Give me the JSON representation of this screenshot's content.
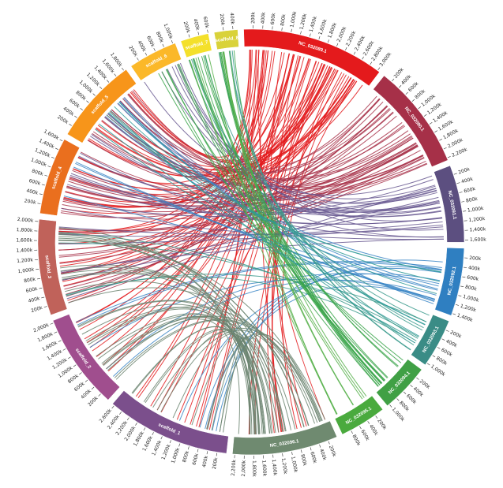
{
  "segments": [
    {
      "name": "NC_032089.1",
      "size": 3050000,
      "color": "#e41a1c",
      "ticks": [
        "200k",
        "400k",
        "600k",
        "800k",
        "1,000k",
        "1,200k",
        "1,400k",
        "1,600k",
        "1,800k",
        "2,000k",
        "2,200k",
        "2,400k",
        "2,600k",
        "2,800k",
        "3,000k"
      ]
    },
    {
      "name": "NC_032090.1",
      "size": 2250000,
      "color": "#a63048",
      "ticks": [
        "200k",
        "400k",
        "600k",
        "800k",
        "1,000k",
        "1,200k",
        "1,400k",
        "1,600k",
        "1,800k",
        "2,000k",
        "2,200k"
      ]
    },
    {
      "name": "NC_032091.1",
      "size": 1650000,
      "color": "#5c4f80",
      "ticks": [
        "200k",
        "400k",
        "600k",
        "800k",
        "1,000k",
        "1,200k",
        "1,400k",
        "1,600k"
      ]
    },
    {
      "name": "NC_032092.1",
      "size": 1450000,
      "color": "#2f7fc1",
      "ticks": [
        "200k",
        "400k",
        "600k",
        "800k",
        "1,000k",
        "1,200k",
        "1,400k"
      ]
    },
    {
      "name": "NC_032093.1",
      "size": 1050000,
      "color": "#3a8c86",
      "ticks": [
        "200k",
        "400k",
        "600k",
        "800k",
        "1,000k"
      ]
    },
    {
      "name": "NC_032094.1",
      "size": 1050000,
      "color": "#40a045",
      "ticks": [
        "200k",
        "400k",
        "600k",
        "800k",
        "1,000k"
      ]
    },
    {
      "name": "NC_032095.1",
      "size": 1000000,
      "color": "#4aaa3e",
      "ticks": [
        "200k",
        "400k",
        "600k",
        "800k"
      ]
    },
    {
      "name": "NC_032096.1",
      "size": 2250000,
      "color": "#6f8a70",
      "ticks": [
        "200k",
        "400k",
        "600k",
        "800k",
        "1,000k",
        "1,200k",
        "1,400k",
        "1,600k",
        "1,800k",
        "2,000k",
        "2,200k"
      ]
    },
    {
      "name": "scaffold_1",
      "size": 2650000,
      "color": "#7b4f8c",
      "ticks": [
        "200k",
        "400k",
        "600k",
        "800k",
        "1,000k",
        "1,200k",
        "1,400k",
        "1,600k",
        "1,800k",
        "2,000k",
        "2,200k",
        "2,400k",
        "2,600k"
      ]
    },
    {
      "name": "scaffold_2",
      "size": 2050000,
      "color": "#a04e8e",
      "ticks": [
        "200k",
        "400k",
        "600k",
        "800k",
        "1,000k",
        "1,200k",
        "1,400k",
        "1,600k",
        "1,800k",
        "2,000k"
      ]
    },
    {
      "name": "scaffold_3",
      "size": 2050000,
      "color": "#c0625a",
      "ticks": [
        "200k",
        "400k",
        "600k",
        "800k",
        "1,000k",
        "1,200k",
        "1,400k",
        "1,600k",
        "1,800k",
        "2,000k"
      ]
    },
    {
      "name": "scaffold_4",
      "size": 1650000,
      "color": "#ea6f1e",
      "ticks": [
        "200k",
        "400k",
        "600k",
        "800k",
        "1,000k",
        "1,200k",
        "1,400k",
        "1,600k"
      ]
    },
    {
      "name": "scaffold_5",
      "size": 1850000,
      "color": "#f7951a",
      "ticks": [
        "200k",
        "400k",
        "600k",
        "800k",
        "1,000k",
        "1,200k",
        "1,400k",
        "1,600k",
        "1,800k"
      ]
    },
    {
      "name": "scaffold_6",
      "size": 1050000,
      "color": "#fbb829",
      "ticks": [
        "200k",
        "400k",
        "600k",
        "800k",
        "1,000k"
      ]
    },
    {
      "name": "scaffold_7",
      "size": 600000,
      "color": "#f4e02a",
      "ticks": [
        "200k",
        "400k",
        "600k"
      ]
    },
    {
      "name": "scaffold_8",
      "size": 500000,
      "color": "#d9d23a",
      "ticks": [
        "200k",
        "400k"
      ]
    }
  ],
  "link_groups": [
    {
      "source": "NC_032089.1",
      "targets": [
        "scaffold_3",
        "scaffold_4",
        "scaffold_5",
        "scaffold_1",
        "NC_032096.1",
        "scaffold_2"
      ],
      "count": 70,
      "color": "#e31a1c"
    },
    {
      "source": "NC_032090.1",
      "targets": [
        "scaffold_3",
        "scaffold_4",
        "scaffold_5"
      ],
      "count": 40,
      "color": "#a8324a"
    },
    {
      "source": "NC_032091.1",
      "targets": [
        "scaffold_5",
        "scaffold_4",
        "scaffold_3",
        "scaffold_6"
      ],
      "count": 30,
      "color": "#6a5a92"
    },
    {
      "source": "NC_032092.1",
      "targets": [
        "scaffold_1",
        "scaffold_2",
        "scaffold_4",
        "scaffold_5"
      ],
      "count": 18,
      "color": "#3b86c6"
    },
    {
      "source": "NC_032093.1",
      "targets": [
        "scaffold_7",
        "scaffold_8",
        "scaffold_3"
      ],
      "count": 12,
      "color": "#3a9a8c"
    },
    {
      "source": "NC_032094.1",
      "targets": [
        "scaffold_7",
        "scaffold_8",
        "scaffold_6"
      ],
      "count": 18,
      "color": "#3aa44a"
    },
    {
      "source": "NC_032095.1",
      "targets": [
        "scaffold_7",
        "scaffold_8"
      ],
      "count": 8,
      "color": "#56b04a"
    },
    {
      "source": "NC_032096.1",
      "targets": [
        "scaffold_1",
        "scaffold_2",
        "scaffold_3"
      ],
      "count": 45,
      "color": "#6b8470"
    },
    {
      "source": "scaffold_5",
      "targets": [
        "NC_032093.1",
        "NC_032092.1"
      ],
      "count": 8,
      "color": "#2e9a96"
    }
  ]
}
